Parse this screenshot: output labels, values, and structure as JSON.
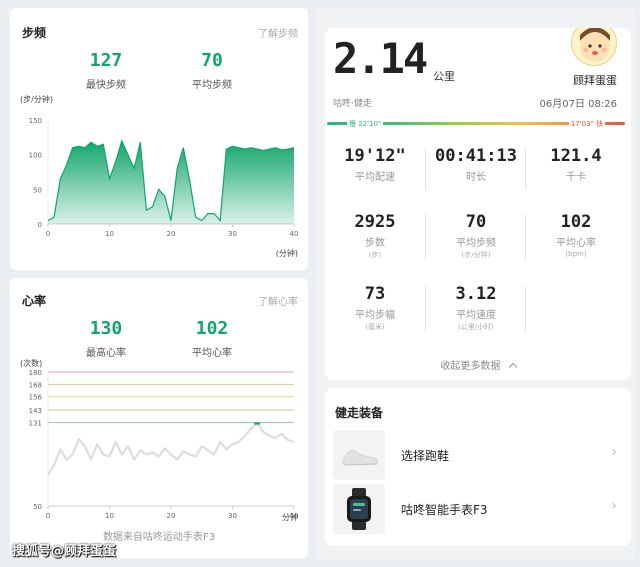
{
  "cadence": {
    "title": "步频",
    "link": "了解步频",
    "max_value": "127",
    "max_label": "最快步频",
    "avg_value": "70",
    "avg_label": "平均步频",
    "unit": "(步/分钟)",
    "xunit": "(分钟)",
    "chart_data": {
      "type": "area",
      "color": "#12a56b",
      "x": [
        0,
        1,
        2,
        3,
        4,
        5,
        6,
        7,
        8,
        9,
        10,
        11,
        12,
        13,
        14,
        15,
        16,
        17,
        18,
        19,
        20,
        21,
        22,
        23,
        24,
        25,
        26,
        27,
        28,
        29,
        30,
        31,
        32,
        33,
        34,
        35,
        36,
        37,
        38,
        39,
        40
      ],
      "values": [
        5,
        10,
        65,
        85,
        110,
        112,
        110,
        118,
        112,
        115,
        65,
        90,
        120,
        100,
        80,
        118,
        20,
        25,
        50,
        40,
        5,
        80,
        110,
        65,
        10,
        5,
        15,
        15,
        5,
        108,
        112,
        110,
        108,
        110,
        108,
        106,
        108,
        110,
        107,
        108,
        110
      ],
      "xlim": [
        0,
        40
      ],
      "ylim": [
        0,
        150
      ],
      "xticks": [
        "0",
        "10",
        "20",
        "30",
        "40"
      ],
      "yticks": [
        "0",
        "50",
        "100",
        "150"
      ]
    }
  },
  "heart": {
    "title": "心率",
    "link": "了解心率",
    "max_value": "130",
    "max_label": "最高心率",
    "avg_value": "102",
    "avg_label": "平均心率",
    "unit": "(次数)",
    "xunit": "分钟",
    "source": "数据来自咕咚运动手表F3",
    "chart_data": {
      "type": "line",
      "color": "#dddddd",
      "zone_lines": [
        {
          "value": 180,
          "color": "#e8a0a0"
        },
        {
          "value": 168,
          "color": "#f0c080"
        },
        {
          "value": 156,
          "color": "#e6d890"
        },
        {
          "value": 143,
          "color": "#b8d890"
        },
        {
          "value": 131,
          "color": "#90cfae"
        }
      ],
      "x": [
        0,
        1,
        2,
        3,
        4,
        5,
        6,
        7,
        8,
        9,
        10,
        11,
        12,
        13,
        14,
        15,
        16,
        17,
        18,
        19,
        20,
        21,
        22,
        23,
        24,
        25,
        26,
        27,
        28,
        29,
        30,
        31,
        32,
        33,
        34,
        35,
        36,
        37,
        38,
        39,
        40
      ],
      "values": [
        80,
        90,
        105,
        95,
        100,
        115,
        108,
        95,
        110,
        100,
        98,
        112,
        100,
        108,
        95,
        104,
        100,
        102,
        98,
        106,
        100,
        95,
        103,
        100,
        98,
        108,
        104,
        100,
        112,
        105,
        110,
        112,
        118,
        125,
        130,
        122,
        118,
        116,
        120,
        114,
        112
      ],
      "xlim": [
        0,
        40
      ],
      "ylim": [
        50,
        180
      ],
      "xticks": [
        "0",
        "10",
        "20",
        "30",
        "40"
      ],
      "yticks": [
        "50",
        "131",
        "143",
        "156",
        "168",
        "180"
      ]
    }
  },
  "summary": {
    "distance": "2.14",
    "distance_unit": "公里",
    "activity": "咕咚·健走",
    "username": "顾拜蛋蛋",
    "datetime": "06月07日 08:26",
    "pace_slow": "慢 22'10\"",
    "pace_fast": "17'03\" 快",
    "stats": [
      {
        "value": "19'12\"",
        "label": "平均配速",
        "unit": ""
      },
      {
        "value": "00:41:13",
        "label": "时长",
        "unit": ""
      },
      {
        "value": "121.4",
        "label": "千卡",
        "unit": ""
      },
      {
        "value": "2925",
        "label": "步数",
        "unit": "(步)"
      },
      {
        "value": "70",
        "label": "平均步频",
        "unit": "(步/分钟)"
      },
      {
        "value": "102",
        "label": "平均心率",
        "unit": "(bpm)"
      },
      {
        "value": "73",
        "label": "平均步幅",
        "unit": "(厘米)"
      },
      {
        "value": "3.12",
        "label": "平均速度",
        "unit": "(公里/小时)"
      }
    ],
    "collapse_label": "收起更多数据",
    "collapse_icon": "chevron-up-icon"
  },
  "equipment": {
    "title": "健走装备",
    "items": [
      {
        "label": "选择跑鞋",
        "icon": "shoe-icon"
      },
      {
        "label": "咕咚智能手表F3",
        "icon": "watch-icon"
      }
    ]
  },
  "watermark": "搜狐号@顾拜蛋蛋"
}
